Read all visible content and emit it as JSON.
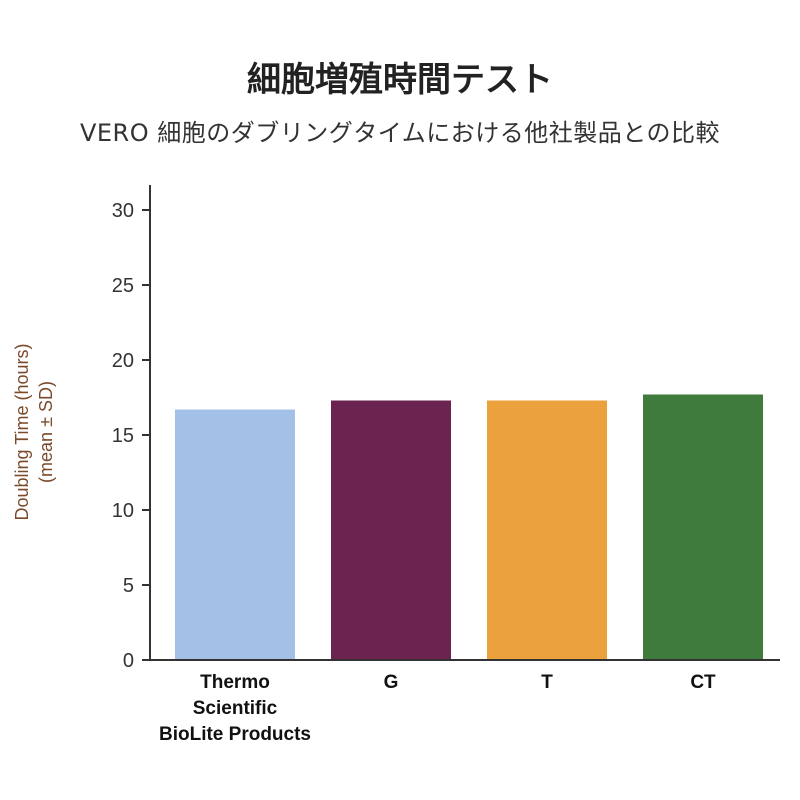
{
  "chart_data": {
    "type": "bar",
    "title": "細胞増殖時間テスト",
    "subtitle": "VERO 細胞のダブリングタイムにおける他社製品との比較",
    "ylabel": [
      "Doubling Time (hours)",
      "(mean ± SD)"
    ],
    "xlabel": "",
    "categories": [
      [
        "Thermo",
        "Scientific",
        "BioLite Products"
      ],
      [
        "G"
      ],
      [
        "T"
      ],
      [
        "CT"
      ]
    ],
    "values": [
      16.7,
      17.3,
      17.3,
      17.7
    ],
    "colors": [
      "#a3c0e6",
      "#6b2450",
      "#eba23c",
      "#3f7b3c"
    ],
    "ylim": [
      0,
      30
    ],
    "yticks": [
      "0",
      "5",
      "10",
      "15",
      "20",
      "25",
      "30"
    ],
    "grid": false,
    "legend": "none"
  }
}
